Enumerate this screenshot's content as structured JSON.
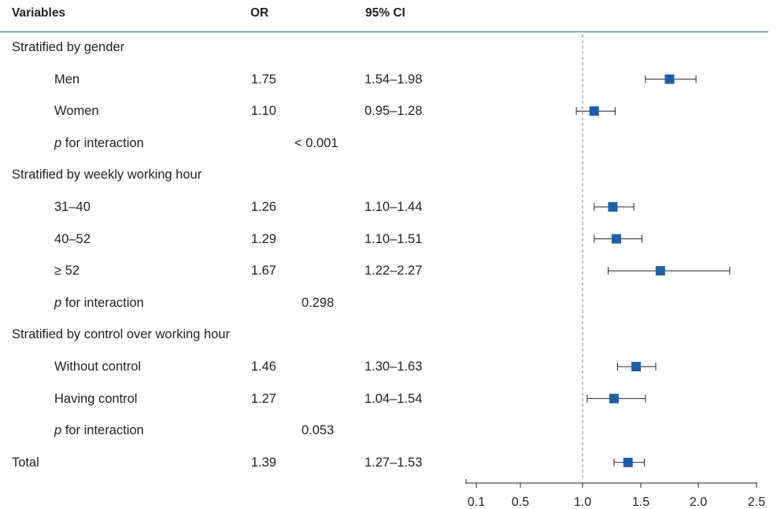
{
  "table": {
    "headers": {
      "variables": "Variables",
      "or": "OR",
      "ci": "95% CI"
    },
    "rows": [
      {
        "kind": "group",
        "label": "Stratified by gender"
      },
      {
        "kind": "item",
        "label": "Men",
        "or": "1.75",
        "ci": "1.54–1.98"
      },
      {
        "kind": "item",
        "label": "Women",
        "or": "1.10",
        "ci": "0.95–1.28"
      },
      {
        "kind": "p",
        "label_italic": "p",
        "label_rest": " for interaction",
        "value": "< 0.001"
      },
      {
        "kind": "group",
        "label": "Stratified by weekly working hour"
      },
      {
        "kind": "item",
        "label": "31–40",
        "or": "1.26",
        "ci": "1.10–1.44"
      },
      {
        "kind": "item",
        "label": "40–52",
        "or": "1.29",
        "ci": "1.10–1.51"
      },
      {
        "kind": "item",
        "label": "≥ 52",
        "or": "1.67",
        "ci": "1.22–2.27"
      },
      {
        "kind": "p",
        "label_italic": "p",
        "label_rest": " for interaction",
        "value": "0.298"
      },
      {
        "kind": "group",
        "label": "Stratified by control over working hour"
      },
      {
        "kind": "item",
        "label": "Without control",
        "or": "1.46",
        "ci": "1.30–1.63"
      },
      {
        "kind": "item",
        "label": "Having control",
        "or": "1.27",
        "ci": "1.04–1.54"
      },
      {
        "kind": "p",
        "label_italic": "p",
        "label_rest": " for interaction",
        "value": "0.053"
      },
      {
        "kind": "total",
        "label": "Total",
        "or": "1.39",
        "ci": "1.27–1.53"
      }
    ]
  },
  "chart_data": {
    "type": "scatter",
    "subtype": "forest-plot",
    "x_ticks": [
      0.1,
      0.5,
      1.0,
      1.5,
      2.0,
      2.5
    ],
    "x_tick_labels": [
      "0.1",
      "0.5",
      "1.0",
      "1.5",
      "2.0",
      "2.5"
    ],
    "xlim": [
      0.1,
      2.5
    ],
    "reference_line": 1.0,
    "points": [
      {
        "label": "Men",
        "or": 1.75,
        "lower": 1.54,
        "upper": 1.98
      },
      {
        "label": "Women",
        "or": 1.1,
        "lower": 0.95,
        "upper": 1.28
      },
      {
        "label": "31–40",
        "or": 1.26,
        "lower": 1.1,
        "upper": 1.44
      },
      {
        "label": "40–52",
        "or": 1.29,
        "lower": 1.1,
        "upper": 1.51
      },
      {
        "label": "≥ 52",
        "or": 1.67,
        "lower": 1.22,
        "upper": 2.27
      },
      {
        "label": "Without control",
        "or": 1.46,
        "lower": 1.3,
        "upper": 1.63
      },
      {
        "label": "Having control",
        "or": 1.27,
        "lower": 1.04,
        "upper": 1.54
      },
      {
        "label": "Total",
        "or": 1.39,
        "lower": 1.27,
        "upper": 1.53
      }
    ],
    "colors": {
      "marker": "#1f5fa8",
      "line": "#222222",
      "reference": "#888888",
      "header_rule": "#2d5f8f"
    }
  }
}
